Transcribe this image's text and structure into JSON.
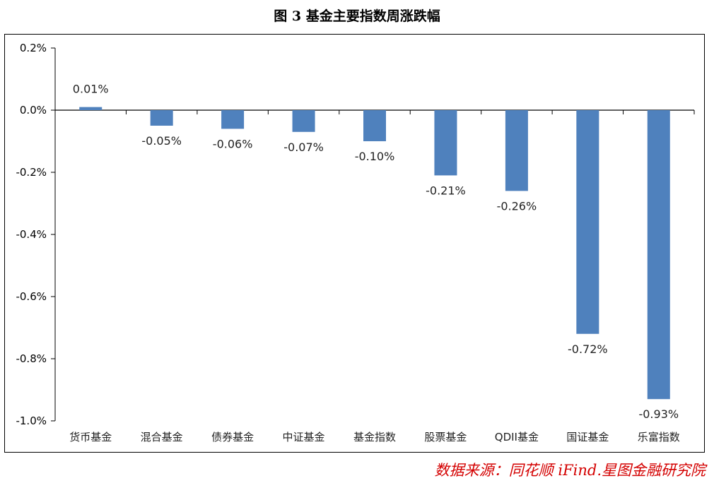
{
  "title": "图 3 基金主要指数周涨跌幅",
  "source": "数据来源：同花顺 iFind.星图金融研究院",
  "chart_data": {
    "type": "bar",
    "categories": [
      "货币基金",
      "混合基金",
      "债券基金",
      "中证基金",
      "基金指数",
      "股票基金",
      "QDII基金",
      "国证基金",
      "乐富指数"
    ],
    "values": [
      0.01,
      -0.05,
      -0.06,
      -0.07,
      -0.1,
      -0.21,
      -0.26,
      -0.72,
      -0.93
    ],
    "data_labels": [
      "0.01%",
      "-0.05%",
      "-0.06%",
      "-0.07%",
      "-0.10%",
      "-0.21%",
      "-0.26%",
      "-0.72%",
      "-0.93%"
    ],
    "ylim": [
      -1.0,
      0.2
    ],
    "yticks": [
      0.2,
      0.0,
      -0.2,
      -0.4,
      -0.6,
      -0.8,
      -1.0
    ],
    "ytick_labels": [
      "0.2%",
      "0.0%",
      "-0.2%",
      "-0.4%",
      "-0.6%",
      "-0.8%",
      "-1.0%"
    ],
    "bar_color": "#4f81bd",
    "grid": false,
    "legend": "none"
  }
}
